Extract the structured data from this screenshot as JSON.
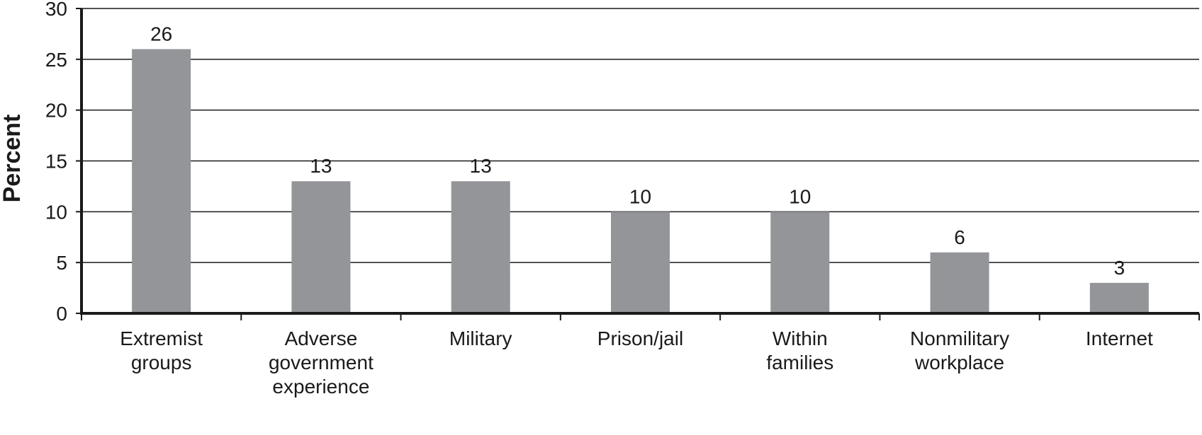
{
  "chart_data": {
    "type": "bar",
    "categories": [
      [
        "Extremist",
        "groups"
      ],
      [
        "Adverse",
        "government",
        "experience"
      ],
      [
        "Military"
      ],
      [
        "Prison/jail"
      ],
      [
        "Within",
        "families"
      ],
      [
        "Nonmilitary",
        "workplace"
      ],
      [
        "Internet"
      ]
    ],
    "values": [
      26,
      13,
      13,
      10,
      10,
      6,
      3
    ],
    "data_labels": [
      "26",
      "13",
      "13",
      "10",
      "10",
      "6",
      "3"
    ],
    "ylabel": "Percent",
    "xlabel": "",
    "ylim": [
      0,
      30
    ],
    "yticks": [
      0,
      5,
      10,
      15,
      20,
      25,
      30
    ],
    "grid": true,
    "bar_color": "#939598",
    "axis_color": "#1a1a1a",
    "grid_color": "#1a1a1a"
  }
}
